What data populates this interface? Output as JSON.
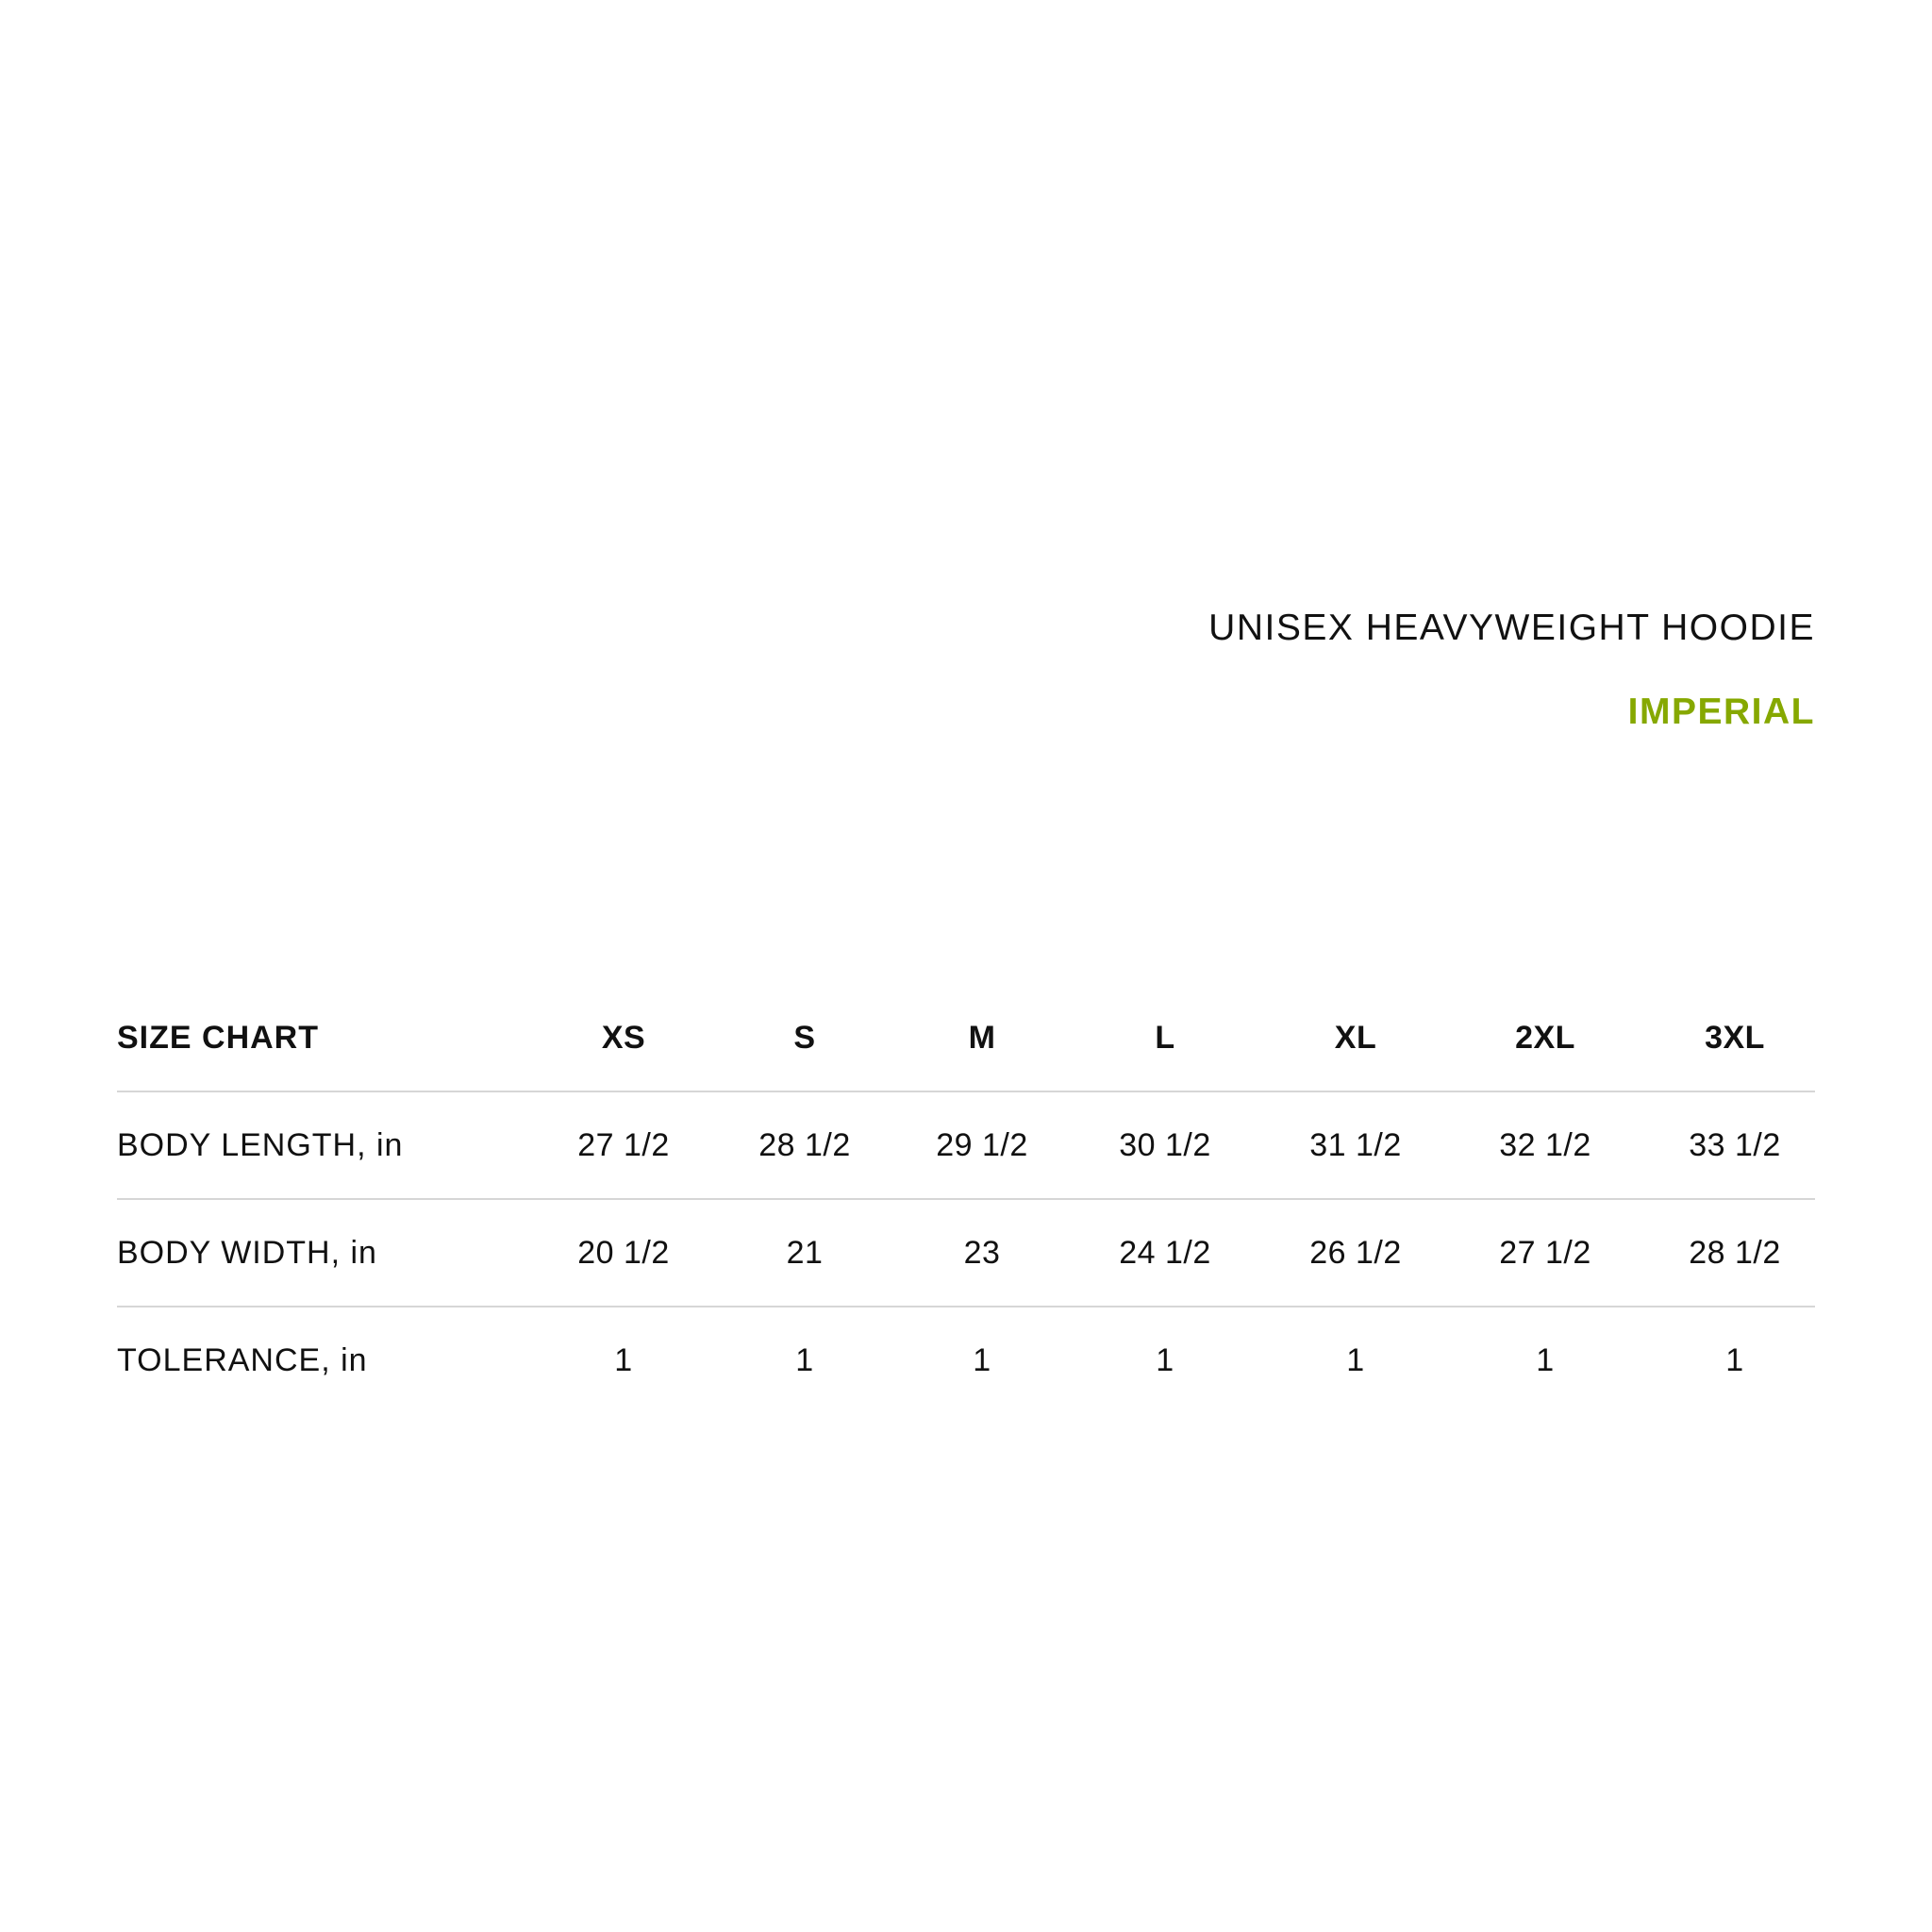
{
  "title": "UNISEX HEAVYWEIGHT HOODIE",
  "subtitle": "IMPERIAL",
  "colors": {
    "accent": "#86a800",
    "text": "#111111",
    "divider": "#d6d6d6"
  },
  "table": {
    "header_label": "SIZE CHART",
    "sizes": [
      "XS",
      "S",
      "M",
      "L",
      "XL",
      "2XL",
      "3XL"
    ],
    "rows": [
      {
        "label": "BODY LENGTH, in",
        "values": [
          "27 1/2",
          "28 1/2",
          "29 1/2",
          "30 1/2",
          "31 1/2",
          "32 1/2",
          "33 1/2"
        ]
      },
      {
        "label": "BODY WIDTH, in",
        "values": [
          "20 1/2",
          "21",
          "23",
          "24 1/2",
          "26 1/2",
          "27 1/2",
          "28 1/2"
        ]
      },
      {
        "label": "TOLERANCE, in",
        "values": [
          "1",
          "1",
          "1",
          "1",
          "1",
          "1",
          "1"
        ]
      }
    ]
  }
}
